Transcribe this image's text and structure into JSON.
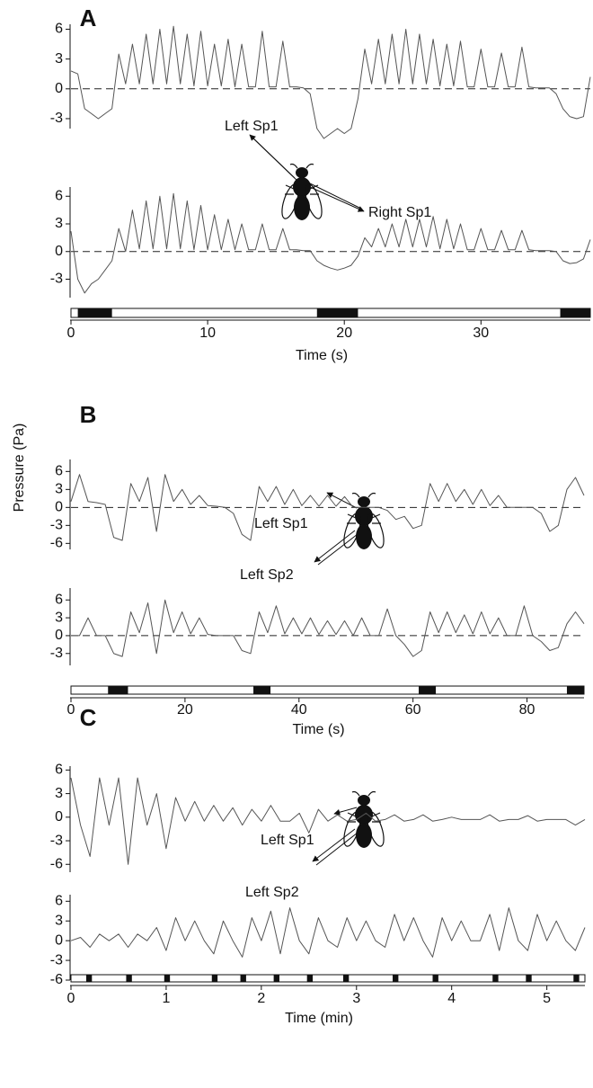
{
  "ylabel": "Pressure (Pa)",
  "chart_data": [
    {
      "type": "line",
      "panel": "A",
      "xlabel": "Time (s)",
      "xlim": [
        0,
        38
      ],
      "xticks": [
        0,
        10,
        20,
        30
      ],
      "zero_line": "dashed",
      "color": "#555555",
      "annotations": [
        "Left Sp1",
        "Right Sp1"
      ],
      "light_periods": [
        [
          0.5,
          3
        ],
        [
          18,
          21
        ],
        [
          35.8,
          38
        ]
      ],
      "x": [
        0,
        0.5,
        1,
        1.5,
        2,
        2.5,
        3,
        3.5,
        4,
        4.5,
        5,
        5.5,
        6,
        6.5,
        7,
        7.5,
        8,
        8.5,
        9,
        9.5,
        10,
        10.5,
        11,
        11.5,
        12,
        12.5,
        13,
        13.5,
        14,
        14.5,
        15,
        15.5,
        16,
        16.5,
        17,
        17.5,
        18,
        18.5,
        19,
        19.5,
        20,
        20.5,
        21,
        21.5,
        22,
        22.5,
        23,
        23.5,
        24,
        24.5,
        25,
        25.5,
        26,
        26.5,
        27,
        27.5,
        28,
        28.5,
        29,
        29.5,
        30,
        30.5,
        31,
        31.5,
        32,
        32.5,
        33,
        33.5,
        34,
        34.5,
        35,
        35.5,
        36,
        36.5,
        37,
        37.5,
        38
      ],
      "series": [
        {
          "ylim": [
            -4,
            6.5
          ],
          "yticks": [
            -3,
            0,
            3,
            6
          ],
          "values": [
            1.8,
            1.5,
            -2,
            -2.5,
            -3,
            -2.5,
            -2,
            3.5,
            0.5,
            4.5,
            0.5,
            5.5,
            0.5,
            6,
            0.5,
            6.3,
            0.5,
            5.5,
            0.3,
            5.8,
            0.3,
            4.5,
            0.3,
            5,
            0.2,
            4.5,
            0.2,
            0.2,
            5.8,
            0.2,
            0.2,
            4.8,
            0.2,
            0.2,
            0.1,
            -0.5,
            -4,
            -5,
            -4.5,
            -4,
            -4.5,
            -4,
            -1,
            4,
            0.5,
            5,
            0.5,
            5.5,
            0.5,
            6,
            0.5,
            5.5,
            0.5,
            5,
            0.3,
            4.5,
            0.3,
            4.8,
            0.2,
            0.2,
            4,
            0.2,
            0.2,
            3.6,
            0.2,
            0.2,
            4.2,
            0.2,
            0.1,
            0.1,
            0.1,
            -0.5,
            -2,
            -2.8,
            -3,
            -2.8,
            1.2
          ]
        },
        {
          "ylim": [
            -5,
            7
          ],
          "yticks": [
            -3,
            0,
            3,
            6
          ],
          "values": [
            2.2,
            -3,
            -4.5,
            -3.5,
            -3,
            -2,
            -1,
            2.5,
            0,
            4.5,
            0.3,
            5.5,
            0.3,
            6,
            0.3,
            6.3,
            0.3,
            5.5,
            0.2,
            5,
            0.2,
            4,
            0.2,
            3.5,
            0.2,
            3,
            0.2,
            0.2,
            3,
            0.2,
            0.2,
            2.5,
            0.2,
            0.2,
            0.1,
            0.1,
            -1,
            -1.5,
            -1.8,
            -2,
            -1.8,
            -1.5,
            -0.5,
            1.5,
            0.5,
            2.5,
            0.5,
            3,
            0.5,
            3.5,
            0.5,
            3.5,
            0.5,
            3.8,
            0.3,
            3.5,
            0.3,
            3,
            0.2,
            0.2,
            2.5,
            0.2,
            0.2,
            2.3,
            0.2,
            0.2,
            2.3,
            0.2,
            0.1,
            0.1,
            0.1,
            0,
            -1,
            -1.3,
            -1.2,
            -0.8,
            1.3
          ]
        }
      ]
    },
    {
      "type": "line",
      "panel": "B",
      "xlabel": "Time (s)",
      "xlim": [
        0,
        90
      ],
      "xticks": [
        0,
        20,
        40,
        60,
        80
      ],
      "zero_line": "dashed",
      "color": "#555555",
      "annotations": [
        "Left Sp1",
        "Left Sp2"
      ],
      "light_periods": [
        [
          6.5,
          10
        ],
        [
          32,
          35
        ],
        [
          61,
          64
        ],
        [
          87,
          90
        ]
      ],
      "x": [
        0,
        1.5,
        3,
        4.5,
        6,
        7.5,
        9,
        10.5,
        12,
        13.5,
        15,
        16.5,
        18,
        19.5,
        21,
        22.5,
        24,
        25.5,
        27,
        28.5,
        30,
        31.5,
        33,
        34.5,
        36,
        37.5,
        39,
        40.5,
        42,
        43.5,
        45,
        46.5,
        48,
        49.5,
        51,
        52.5,
        54,
        55.5,
        57,
        58.5,
        60,
        61.5,
        63,
        64.5,
        66,
        67.5,
        69,
        70.5,
        72,
        73.5,
        75,
        76.5,
        78,
        79.5,
        81,
        82.5,
        84,
        85.5,
        87,
        88.5,
        90
      ],
      "series": [
        {
          "ylim": [
            -7,
            8
          ],
          "yticks": [
            -6,
            -3,
            0,
            3,
            6
          ],
          "values": [
            1,
            5.5,
            1,
            0.8,
            0.5,
            -5,
            -5.5,
            4,
            1,
            5,
            -4,
            5.5,
            1,
            3,
            0.5,
            2,
            0.3,
            0.2,
            0,
            -1,
            -4.5,
            -5.5,
            3.5,
            1,
            3.5,
            0.5,
            3,
            0.3,
            2,
            0.2,
            2,
            0.2,
            1.8,
            0,
            0,
            0,
            0,
            -0.5,
            -2,
            -1.5,
            -3.5,
            -3,
            4,
            1,
            4,
            1,
            3,
            0.5,
            3,
            0.3,
            2,
            0,
            0,
            0,
            0,
            -1,
            -4,
            -3,
            3,
            5,
            2
          ]
        },
        {
          "ylim": [
            -5,
            8
          ],
          "yticks": [
            -3,
            0,
            3,
            6
          ],
          "values": [
            0,
            0,
            3,
            0,
            0,
            -3,
            -3.5,
            4,
            0.5,
            5.5,
            -3,
            6,
            0.5,
            4,
            0.3,
            3,
            0.2,
            0,
            0,
            0,
            -2.5,
            -3,
            4,
            0.5,
            5,
            0.3,
            3,
            0.3,
            3,
            0.2,
            2.5,
            0.2,
            2.5,
            0,
            3,
            0,
            0,
            4.5,
            0,
            -1.5,
            -3.5,
            -2.5,
            4,
            0.5,
            4,
            0.5,
            3.5,
            0.3,
            4,
            0.3,
            3,
            0,
            0,
            5,
            0,
            -1,
            -2.5,
            -2,
            2,
            4,
            2
          ]
        }
      ]
    },
    {
      "type": "line",
      "panel": "C",
      "xlabel": "Time (min)",
      "xlim": [
        0,
        5.4
      ],
      "xticks": [
        0,
        1,
        2,
        3,
        4,
        5
      ],
      "zero_line": "none",
      "color": "#555555",
      "annotations": [
        "Left Sp1",
        "Left Sp2"
      ],
      "light_periods": [
        [
          0.16,
          0.22
        ],
        [
          0.58,
          0.64
        ],
        [
          0.98,
          1.04
        ],
        [
          1.48,
          1.54
        ],
        [
          1.78,
          1.84
        ],
        [
          2.13,
          2.19
        ],
        [
          2.48,
          2.54
        ],
        [
          2.86,
          2.92
        ],
        [
          3.38,
          3.44
        ],
        [
          3.8,
          3.86
        ],
        [
          4.43,
          4.49
        ],
        [
          4.78,
          4.84
        ],
        [
          5.28,
          5.34
        ]
      ],
      "x": [
        0,
        0.1,
        0.2,
        0.3,
        0.4,
        0.5,
        0.6,
        0.7,
        0.8,
        0.9,
        1.0,
        1.1,
        1.2,
        1.3,
        1.4,
        1.5,
        1.6,
        1.7,
        1.8,
        1.9,
        2.0,
        2.1,
        2.2,
        2.3,
        2.4,
        2.5,
        2.6,
        2.7,
        2.8,
        2.9,
        3.0,
        3.1,
        3.2,
        3.3,
        3.4,
        3.5,
        3.6,
        3.7,
        3.8,
        3.9,
        4.0,
        4.1,
        4.2,
        4.3,
        4.4,
        4.5,
        4.6,
        4.7,
        4.8,
        4.9,
        5.0,
        5.1,
        5.2,
        5.3,
        5.4
      ],
      "series": [
        {
          "ylim": [
            -7,
            6.5
          ],
          "yticks": [
            -6,
            -3,
            0,
            3,
            6
          ],
          "values": [
            5,
            -1,
            -5,
            5,
            -1,
            5,
            -6,
            5,
            -1,
            3,
            -4,
            2.5,
            -0.5,
            2,
            -0.5,
            1.5,
            -0.5,
            1.2,
            -1,
            1,
            -0.5,
            1.5,
            -0.5,
            -0.5,
            0.5,
            -2,
            1,
            -0.5,
            0.3,
            -0.5,
            -0.3,
            0.5,
            -0.5,
            -0.3,
            0.3,
            -0.5,
            -0.3,
            0.3,
            -0.5,
            -0.3,
            0,
            -0.3,
            -0.3,
            -0.3,
            0.3,
            -0.5,
            -0.3,
            -0.3,
            0.2,
            -0.5,
            -0.3,
            -0.3,
            -0.3,
            -1,
            -0.3
          ]
        },
        {
          "ylim": [
            -6,
            7
          ],
          "yticks": [
            -6,
            -3,
            0,
            3,
            6
          ],
          "values": [
            0,
            0.5,
            -1,
            1,
            0,
            1,
            -1,
            1,
            0,
            2,
            -1.5,
            3.5,
            0,
            3,
            0,
            -2,
            3,
            0,
            -2.5,
            3.5,
            0,
            4.5,
            -2,
            5,
            0,
            -2,
            3.5,
            0,
            -1,
            3.5,
            0,
            3,
            0,
            -1,
            4,
            0,
            3.5,
            0,
            -2.5,
            3.5,
            0,
            3,
            0,
            0,
            4,
            -1.5,
            5,
            0,
            -1.5,
            4,
            0,
            3,
            0,
            -1.5,
            2
          ]
        }
      ]
    }
  ]
}
